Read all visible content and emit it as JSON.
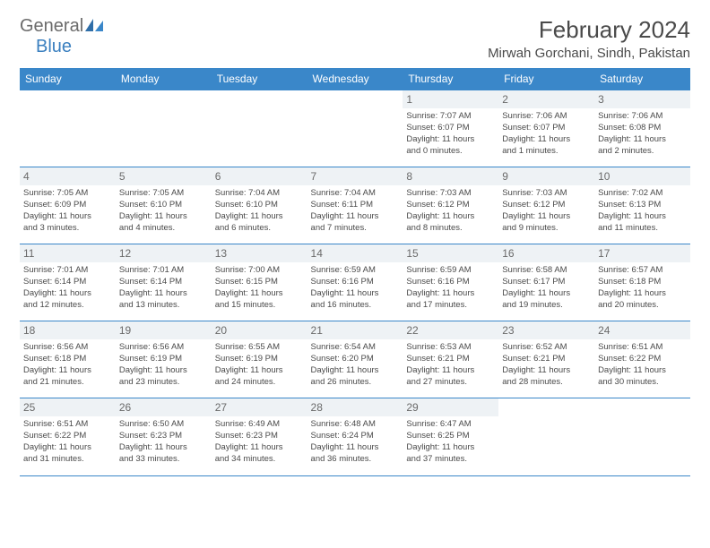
{
  "logo": {
    "general": "General",
    "blue": "Blue"
  },
  "title": "February 2024",
  "location": "Mirwah Gorchani, Sindh, Pakistan",
  "colors": {
    "header_bg": "#3a87c9",
    "header_text": "#ffffff",
    "daynum_bg": "#eef2f5",
    "text": "#4a4a4a",
    "rule": "#3a87c9"
  },
  "dow": [
    "Sunday",
    "Monday",
    "Tuesday",
    "Wednesday",
    "Thursday",
    "Friday",
    "Saturday"
  ],
  "weeks": [
    [
      null,
      null,
      null,
      null,
      {
        "n": "1",
        "sr": "7:07 AM",
        "ss": "6:07 PM",
        "dh": "11",
        "dm": "0"
      },
      {
        "n": "2",
        "sr": "7:06 AM",
        "ss": "6:07 PM",
        "dh": "11",
        "dm": "1"
      },
      {
        "n": "3",
        "sr": "7:06 AM",
        "ss": "6:08 PM",
        "dh": "11",
        "dm": "2"
      }
    ],
    [
      {
        "n": "4",
        "sr": "7:05 AM",
        "ss": "6:09 PM",
        "dh": "11",
        "dm": "3"
      },
      {
        "n": "5",
        "sr": "7:05 AM",
        "ss": "6:10 PM",
        "dh": "11",
        "dm": "4"
      },
      {
        "n": "6",
        "sr": "7:04 AM",
        "ss": "6:10 PM",
        "dh": "11",
        "dm": "6"
      },
      {
        "n": "7",
        "sr": "7:04 AM",
        "ss": "6:11 PM",
        "dh": "11",
        "dm": "7"
      },
      {
        "n": "8",
        "sr": "7:03 AM",
        "ss": "6:12 PM",
        "dh": "11",
        "dm": "8"
      },
      {
        "n": "9",
        "sr": "7:03 AM",
        "ss": "6:12 PM",
        "dh": "11",
        "dm": "9"
      },
      {
        "n": "10",
        "sr": "7:02 AM",
        "ss": "6:13 PM",
        "dh": "11",
        "dm": "11"
      }
    ],
    [
      {
        "n": "11",
        "sr": "7:01 AM",
        "ss": "6:14 PM",
        "dh": "11",
        "dm": "12"
      },
      {
        "n": "12",
        "sr": "7:01 AM",
        "ss": "6:14 PM",
        "dh": "11",
        "dm": "13"
      },
      {
        "n": "13",
        "sr": "7:00 AM",
        "ss": "6:15 PM",
        "dh": "11",
        "dm": "15"
      },
      {
        "n": "14",
        "sr": "6:59 AM",
        "ss": "6:16 PM",
        "dh": "11",
        "dm": "16"
      },
      {
        "n": "15",
        "sr": "6:59 AM",
        "ss": "6:16 PM",
        "dh": "11",
        "dm": "17"
      },
      {
        "n": "16",
        "sr": "6:58 AM",
        "ss": "6:17 PM",
        "dh": "11",
        "dm": "19"
      },
      {
        "n": "17",
        "sr": "6:57 AM",
        "ss": "6:18 PM",
        "dh": "11",
        "dm": "20"
      }
    ],
    [
      {
        "n": "18",
        "sr": "6:56 AM",
        "ss": "6:18 PM",
        "dh": "11",
        "dm": "21"
      },
      {
        "n": "19",
        "sr": "6:56 AM",
        "ss": "6:19 PM",
        "dh": "11",
        "dm": "23"
      },
      {
        "n": "20",
        "sr": "6:55 AM",
        "ss": "6:19 PM",
        "dh": "11",
        "dm": "24"
      },
      {
        "n": "21",
        "sr": "6:54 AM",
        "ss": "6:20 PM",
        "dh": "11",
        "dm": "26"
      },
      {
        "n": "22",
        "sr": "6:53 AM",
        "ss": "6:21 PM",
        "dh": "11",
        "dm": "27"
      },
      {
        "n": "23",
        "sr": "6:52 AM",
        "ss": "6:21 PM",
        "dh": "11",
        "dm": "28"
      },
      {
        "n": "24",
        "sr": "6:51 AM",
        "ss": "6:22 PM",
        "dh": "11",
        "dm": "30"
      }
    ],
    [
      {
        "n": "25",
        "sr": "6:51 AM",
        "ss": "6:22 PM",
        "dh": "11",
        "dm": "31"
      },
      {
        "n": "26",
        "sr": "6:50 AM",
        "ss": "6:23 PM",
        "dh": "11",
        "dm": "33"
      },
      {
        "n": "27",
        "sr": "6:49 AM",
        "ss": "6:23 PM",
        "dh": "11",
        "dm": "34"
      },
      {
        "n": "28",
        "sr": "6:48 AM",
        "ss": "6:24 PM",
        "dh": "11",
        "dm": "36"
      },
      {
        "n": "29",
        "sr": "6:47 AM",
        "ss": "6:25 PM",
        "dh": "11",
        "dm": "37"
      },
      null,
      null
    ]
  ]
}
